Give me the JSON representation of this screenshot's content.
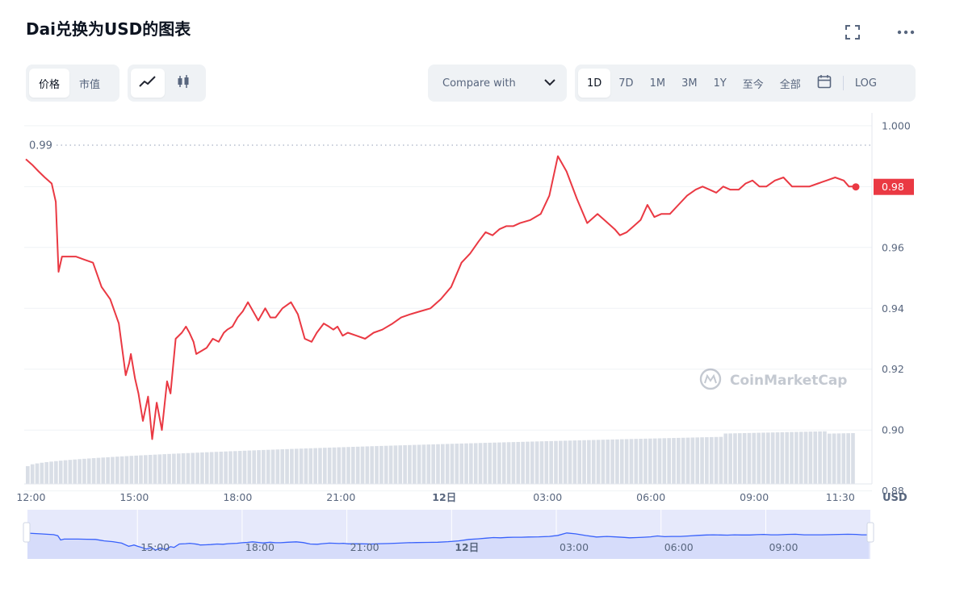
{
  "header": {
    "title": "Dai兑换为USD的图表"
  },
  "toolbar": {
    "type_tabs": [
      "价格",
      "市值"
    ],
    "compare_label": "Compare with",
    "ranges": [
      "1D",
      "7D",
      "1M",
      "3M",
      "1Y",
      "至今",
      "全部"
    ],
    "log_label": "LOG",
    "active_range": "1D"
  },
  "icons": [
    "fullscreen-icon",
    "more-icon",
    "line-chart-icon",
    "candlestick-icon",
    "calendar-icon",
    "chevron-down-icon",
    "coinmarketcap-logo-icon"
  ],
  "colors": {
    "line": "#ea3943",
    "fill_top": "#ea3943",
    "volume": "#cfd6e4",
    "navigator_line": "#3861fb",
    "navigator_fill": "#e6e9fb"
  },
  "chart_data": {
    "type": "area",
    "x_ticks": [
      "12:00",
      "15:00",
      "18:00",
      "21:00",
      "12日",
      "03:00",
      "06:00",
      "09:00",
      "11:30"
    ],
    "y_ticks": [
      "1.000",
      "0.98",
      "0.96",
      "0.94",
      "0.92",
      "0.90",
      "0.88"
    ],
    "ylim": [
      0.8823,
      1.0042
    ],
    "currency_label": "USD",
    "open_price_label": "0.99",
    "open_price": 0.9936,
    "last_price_label": "0.98",
    "last_price": 0.9799,
    "watermark": "CoinMarketCap",
    "x_range": [
      11.85,
      35.95
    ],
    "navigator_ticks": [
      "15:00",
      "18:00",
      "21:00",
      "12日",
      "03:00",
      "06:00",
      "09:00"
    ],
    "series": [
      {
        "x": [
          11.85,
          12.05,
          12.22,
          12.4,
          12.6,
          12.72,
          12.8,
          12.9,
          13.05,
          13.3,
          13.55,
          13.8,
          14.05,
          14.3,
          14.55,
          14.75,
          14.85,
          14.9,
          15.02,
          15.12,
          15.25,
          15.4,
          15.52,
          15.65,
          15.8,
          15.95,
          16.05,
          16.2,
          16.38,
          16.5,
          16.6,
          16.72,
          16.8,
          16.95,
          17.1,
          17.28,
          17.45,
          17.6,
          17.7,
          17.85,
          18.0,
          18.15,
          18.3,
          18.45,
          18.6,
          18.8,
          18.95,
          19.1,
          19.3,
          19.55,
          19.75,
          19.95,
          20.15,
          20.3,
          20.5,
          20.65,
          20.78,
          20.9,
          21.05,
          21.2,
          21.45,
          21.7,
          21.95,
          22.2,
          22.5,
          22.75,
          23.0,
          23.3,
          23.6,
          23.9,
          24.2,
          24.5,
          24.75,
          25.0,
          25.2,
          25.4,
          25.6,
          25.8,
          26.0,
          26.2,
          26.5,
          26.8,
          27.05,
          27.3,
          27.55,
          27.85,
          28.15,
          28.45,
          28.75,
          28.95,
          29.1,
          29.3,
          29.5,
          29.7,
          29.9,
          30.1,
          30.3,
          30.55,
          30.8,
          31.05,
          31.3,
          31.5,
          31.7,
          31.9,
          32.1,
          32.3,
          32.55,
          32.75,
          32.95,
          33.15,
          33.35,
          33.6,
          33.85,
          34.1,
          34.35,
          34.6,
          34.85,
          35.1,
          35.35,
          35.6,
          35.75,
          35.85,
          35.95
        ],
        "y": [
          0.989,
          0.987,
          0.985,
          0.983,
          0.981,
          0.975,
          0.952,
          0.957,
          0.957,
          0.957,
          0.956,
          0.955,
          0.947,
          0.943,
          0.935,
          0.918,
          0.922,
          0.925,
          0.917,
          0.912,
          0.903,
          0.911,
          0.897,
          0.909,
          0.9,
          0.916,
          0.912,
          0.93,
          0.932,
          0.934,
          0.932,
          0.929,
          0.925,
          0.926,
          0.927,
          0.93,
          0.929,
          0.932,
          0.933,
          0.934,
          0.937,
          0.939,
          0.942,
          0.939,
          0.936,
          0.94,
          0.937,
          0.937,
          0.94,
          0.942,
          0.938,
          0.93,
          0.929,
          0.932,
          0.935,
          0.934,
          0.933,
          0.934,
          0.931,
          0.932,
          0.931,
          0.93,
          0.932,
          0.933,
          0.935,
          0.937,
          0.938,
          0.939,
          0.94,
          0.943,
          0.947,
          0.955,
          0.958,
          0.962,
          0.965,
          0.964,
          0.966,
          0.967,
          0.967,
          0.968,
          0.969,
          0.971,
          0.977,
          0.99,
          0.985,
          0.976,
          0.968,
          0.971,
          0.968,
          0.966,
          0.964,
          0.965,
          0.967,
          0.969,
          0.974,
          0.97,
          0.971,
          0.971,
          0.974,
          0.977,
          0.979,
          0.98,
          0.979,
          0.978,
          0.98,
          0.979,
          0.979,
          0.981,
          0.982,
          0.98,
          0.98,
          0.982,
          0.983,
          0.98,
          0.98,
          0.98,
          0.981,
          0.982,
          0.983,
          0.982,
          0.98,
          0.98,
          0.98
        ]
      }
    ]
  }
}
